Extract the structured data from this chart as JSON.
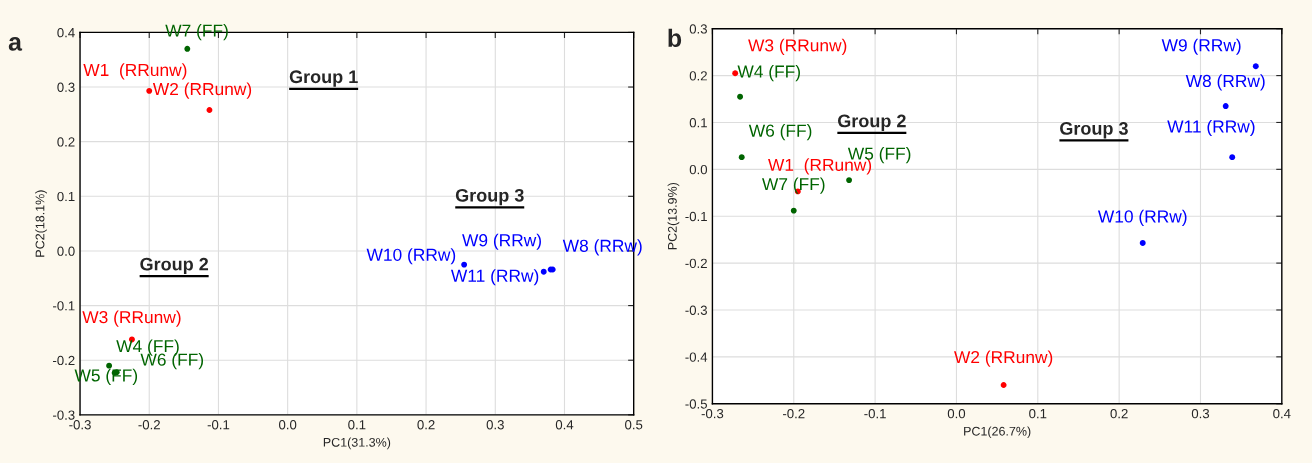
{
  "chart_data": [
    {
      "type": "scatter",
      "xlabel": "PC1(31.3%)",
      "ylabel": "PC2(18.1%)",
      "xlim": [
        -0.3,
        0.5
      ],
      "ylim": [
        -0.3,
        0.4
      ],
      "xticks": [
        {
          "value": -0.3,
          "label": "-0.3"
        },
        {
          "value": -0.2,
          "label": "-0.2"
        },
        {
          "value": -0.1,
          "label": "-0.1"
        },
        {
          "value": 0,
          "label": "0.0"
        },
        {
          "value": 0.1,
          "label": "0.1"
        },
        {
          "value": 0.2,
          "label": "0.2"
        },
        {
          "value": 0.3,
          "label": "0.3"
        },
        {
          "value": 0.4,
          "label": "0.4"
        },
        {
          "value": 0.5,
          "label": "0.5"
        }
      ],
      "yticks": [
        {
          "value": -0.3,
          "label": "-0.3"
        },
        {
          "value": -0.2,
          "label": "-0.2"
        },
        {
          "value": -0.1,
          "label": "-0.1"
        },
        {
          "value": 0,
          "label": "0.0"
        },
        {
          "value": 0.1,
          "label": "0.1"
        },
        {
          "value": 0.2,
          "label": "0.2"
        },
        {
          "value": 0.3,
          "label": "0.3"
        },
        {
          "value": 0.4,
          "label": "0.4"
        }
      ],
      "grid": true,
      "marker": "circle",
      "series": [
        {
          "color": "#ff0000",
          "x": [
            -0.2,
            -0.113,
            -0.225
          ],
          "values": [
            0.293,
            0.258,
            -0.162
          ],
          "value_labels": [
            "W1  (RRunw)",
            "W2 (RRunw)",
            "W3 (RRunw)"
          ]
        },
        {
          "color": "#006400",
          "x": [
            -0.258,
            -0.25,
            -0.247,
            -0.145
          ],
          "values": [
            -0.21,
            -0.223,
            -0.222,
            0.37
          ],
          "value_labels": [
            "W4 (FF)",
            "W5 (FF)",
            "W6 (FF)",
            "W7 (FF)"
          ]
        },
        {
          "color": "#0000ff",
          "x": [
            0.383,
            0.38,
            0.255,
            0.37
          ],
          "values": [
            -0.034,
            -0.034,
            -0.025,
            -0.038
          ],
          "value_labels": [
            "W8 (RRw)",
            "W9 (RRw)",
            "W10 (RRw)",
            "W11 (RRw)"
          ]
        }
      ],
      "annotations": [
        "a",
        "Group 1",
        "Group 3",
        "Group 2"
      ]
    },
    {
      "type": "scatter",
      "xlabel": "PC1(26.7%)",
      "ylabel": "PC2(13.9%)",
      "xlim": [
        -0.3,
        0.4
      ],
      "ylim": [
        -0.5,
        0.3
      ],
      "xticks": [
        {
          "value": -0.3,
          "label": "-0.3"
        },
        {
          "value": -0.2,
          "label": "-0.2"
        },
        {
          "value": -0.1,
          "label": "-0.1"
        },
        {
          "value": 0,
          "label": "0.0"
        },
        {
          "value": 0.1,
          "label": "0.1"
        },
        {
          "value": 0.2,
          "label": "0.2"
        },
        {
          "value": 0.3,
          "label": "0.3"
        },
        {
          "value": 0.4,
          "label": "0.4"
        }
      ],
      "yticks": [
        {
          "value": -0.5,
          "label": "-0.5"
        },
        {
          "value": -0.4,
          "label": "-0.4"
        },
        {
          "value": -0.3,
          "label": "-0.3"
        },
        {
          "value": -0.2,
          "label": "-0.2"
        },
        {
          "value": -0.1,
          "label": "-0.1"
        },
        {
          "value": 0,
          "label": "0.0"
        },
        {
          "value": 0.1,
          "label": "0.1"
        },
        {
          "value": 0.2,
          "label": "0.2"
        },
        {
          "value": 0.3,
          "label": "0.3"
        }
      ],
      "grid": true,
      "marker": "circle",
      "series": [
        {
          "color": "#ff0000",
          "x": [
            -0.195,
            0.058,
            -0.272
          ],
          "values": [
            -0.047,
            -0.46,
            0.205
          ],
          "value_labels": [
            "W1  (RRunw)",
            "W2 (RRunw)",
            "W3 (RRunw)"
          ]
        },
        {
          "color": "#006400",
          "x": [
            -0.266,
            -0.132,
            -0.264,
            -0.2
          ],
          "values": [
            0.155,
            -0.023,
            0.026,
            -0.088
          ],
          "value_labels": [
            "W4 (FF)",
            "W5 (FF)",
            "W6 (FF)",
            "W7 (FF)"
          ]
        },
        {
          "color": "#0000ff",
          "x": [
            0.331,
            0.368,
            0.229,
            0.339
          ],
          "values": [
            0.135,
            0.22,
            -0.157,
            0.026
          ],
          "value_labels": [
            "W8 (RRw)",
            "W9 (RRw)",
            "W10 (RRw)",
            "W11 (RRw)"
          ]
        }
      ],
      "annotations": [
        "b",
        "Group 2",
        "Group 3"
      ]
    }
  ]
}
